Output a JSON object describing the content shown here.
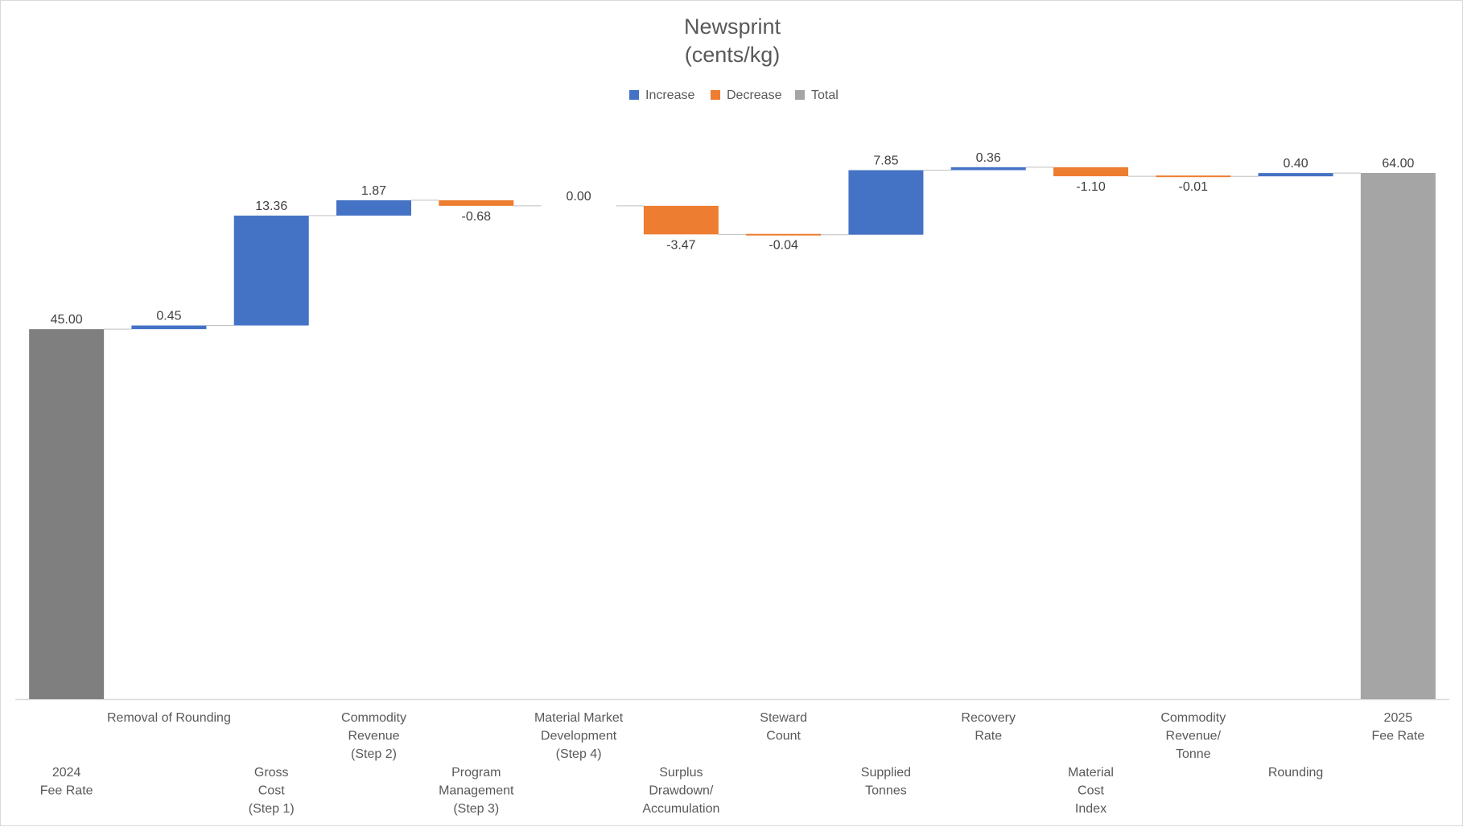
{
  "chart_data": {
    "type": "waterfall",
    "title": "Newsprint",
    "subtitle": "(cents/kg)",
    "legend": {
      "position": "top",
      "entries": [
        {
          "name": "Increase",
          "color": "#4472C4"
        },
        {
          "name": "Decrease",
          "color": "#ED7D31"
        },
        {
          "name": "Total",
          "color": "#A5A5A5"
        }
      ]
    },
    "colors": {
      "increase": "#4472C4",
      "decrease": "#ED7D31",
      "start_total": "#7F7F7F",
      "end_total": "#A5A5A5",
      "axis": "#D9D9D9",
      "connector": "#BFBFBF"
    },
    "ylim": [
      0,
      64
    ],
    "grid": false,
    "categories": [
      {
        "label": [
          "2024",
          "Fee Rate"
        ],
        "value": 45.0,
        "display": "45.00",
        "kind": "total"
      },
      {
        "label": [
          "Removal of Rounding"
        ],
        "value": 0.45,
        "display": "0.45",
        "kind": "increase"
      },
      {
        "label": [
          "Gross",
          "Cost",
          "(Step 1)"
        ],
        "value": 13.36,
        "display": "13.36",
        "kind": "increase"
      },
      {
        "label": [
          "Commodity",
          "Revenue",
          "(Step 2)"
        ],
        "value": 1.87,
        "display": "1.87",
        "kind": "increase"
      },
      {
        "label": [
          "Program",
          "Management",
          "(Step 3)"
        ],
        "value": -0.68,
        "display": "-0.68",
        "kind": "decrease"
      },
      {
        "label": [
          "Material Market",
          "Development",
          "(Step 4)"
        ],
        "value": 0.0,
        "display": "0.00",
        "kind": "increase"
      },
      {
        "label": [
          "Surplus",
          "Drawdown/",
          "Accumulation"
        ],
        "value": -3.47,
        "display": "-3.47",
        "kind": "decrease"
      },
      {
        "label": [
          "Steward",
          "Count"
        ],
        "value": -0.04,
        "display": "-0.04",
        "kind": "decrease"
      },
      {
        "label": [
          "Supplied",
          "Tonnes"
        ],
        "value": 7.85,
        "display": "7.85",
        "kind": "increase"
      },
      {
        "label": [
          "Recovery",
          "Rate"
        ],
        "value": 0.36,
        "display": "0.36",
        "kind": "increase"
      },
      {
        "label": [
          "Material",
          "Cost",
          "Index"
        ],
        "value": -1.1,
        "display": "-1.10",
        "kind": "decrease"
      },
      {
        "label": [
          "Commodity",
          "Revenue/",
          "Tonne"
        ],
        "value": -0.01,
        "display": "-0.01",
        "kind": "decrease"
      },
      {
        "label": [
          "Rounding"
        ],
        "value": 0.4,
        "display": "0.40",
        "kind": "increase"
      },
      {
        "label": [
          "2025",
          "Fee Rate"
        ],
        "value": 64.0,
        "display": "64.00",
        "kind": "total"
      }
    ]
  }
}
